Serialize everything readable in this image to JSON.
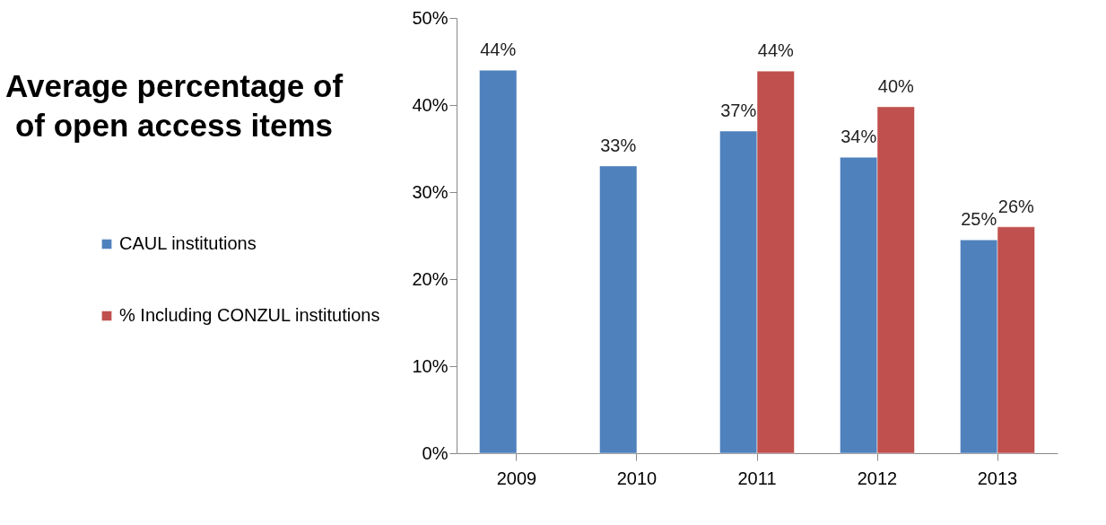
{
  "chart_data": {
    "type": "bar",
    "title": "Average percentage of\nof open access items",
    "categories": [
      "2009",
      "2010",
      "2011",
      "2012",
      "2013"
    ],
    "series": [
      {
        "name": "CAUL institutions",
        "color": "#4f81bd",
        "values": [
          44,
          33,
          37,
          34,
          24.5
        ],
        "value_labels": [
          "44%",
          "33%",
          "37%",
          "34%",
          "25%"
        ]
      },
      {
        "name": "% Including CONZUL institutions",
        "color": "#c0504d",
        "values": [
          null,
          null,
          43.9,
          39.8,
          26
        ],
        "value_labels": [
          null,
          null,
          "44%",
          "40%",
          "26%"
        ]
      }
    ],
    "ylim": [
      0,
      50
    ],
    "yticks": [
      {
        "value": 0,
        "label": "0%"
      },
      {
        "value": 10,
        "label": "10%"
      },
      {
        "value": 20,
        "label": "20%"
      },
      {
        "value": 30,
        "label": "30%"
      },
      {
        "value": 40,
        "label": "40%"
      },
      {
        "value": 50,
        "label": "50%"
      }
    ],
    "grid": false,
    "legend": "left"
  }
}
